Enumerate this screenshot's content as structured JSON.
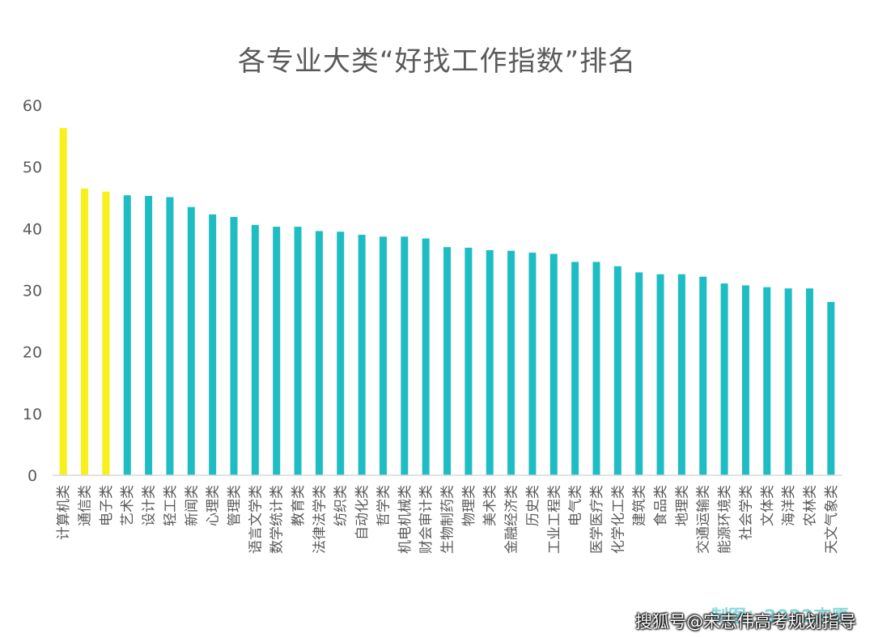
{
  "chart_data": {
    "type": "bar",
    "title": "各专业大类“好找工作指数”排名",
    "xlabel": "",
    "ylabel": "",
    "ylim": [
      0,
      60
    ],
    "yticks": [
      0,
      10,
      20,
      30,
      40,
      50,
      60
    ],
    "grid": false,
    "legend": "none",
    "categories": [
      "计算机类",
      "通信类",
      "电子类",
      "艺术类",
      "设计类",
      "轻工类",
      "新闻类",
      "心理类",
      "管理类",
      "语言文学类",
      "数学统计类",
      "教育类",
      "法律法学类",
      "纺织类",
      "自动化类",
      "哲学类",
      "机电机械类",
      "财会审计类",
      "生物制药类",
      "物理类",
      "美术类",
      "金融经济类",
      "历史类",
      "工业工程类",
      "电气类",
      "医学医疗类",
      "化学化工类",
      "建筑类",
      "食品类",
      "地理类",
      "交通运输类",
      "能源环境类",
      "社会学类",
      "文体类",
      "海洋类",
      "农林类",
      "天文气象类"
    ],
    "values": [
      56.3,
      46.5,
      46.0,
      45.4,
      45.3,
      45.1,
      43.5,
      42.3,
      41.9,
      40.6,
      40.3,
      40.3,
      39.6,
      39.5,
      39.0,
      38.7,
      38.7,
      38.4,
      37.0,
      36.9,
      36.5,
      36.4,
      36.1,
      35.9,
      34.6,
      34.6,
      33.9,
      32.9,
      32.6,
      32.6,
      32.2,
      31.1,
      30.8,
      30.5,
      30.3,
      30.3,
      28.1
    ],
    "highlight_count": 3,
    "colors": {
      "highlight": "#f7f01a",
      "default": "#1ebdc4",
      "axis": "#d9d9d9"
    }
  },
  "footer": {
    "credit": "制图：2022志愿",
    "watermark": "搜狐号@宋志伟高考规划指导"
  }
}
